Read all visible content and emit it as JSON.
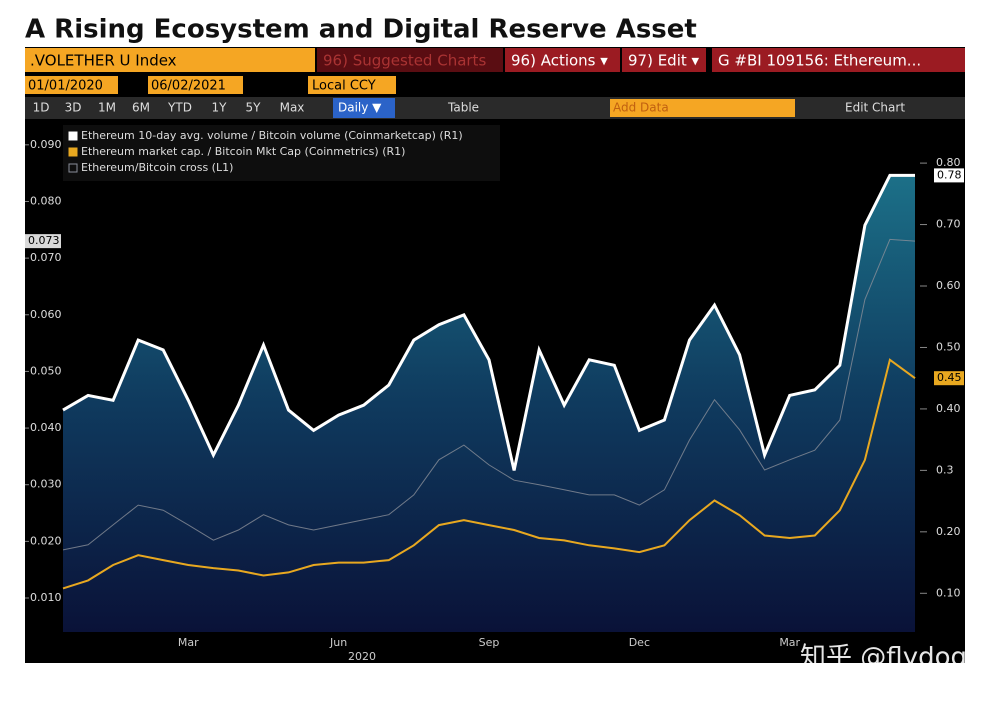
{
  "chart_data": {
    "type": "line",
    "title": "A Rising Ecosystem and Digital Reserve Asset",
    "categories": [
      null,
      null,
      null,
      null,
      null,
      "Mar",
      null,
      null,
      null,
      null,
      null,
      "Jun",
      null,
      null,
      null,
      null,
      null,
      "Sep",
      null,
      null,
      null,
      null,
      null,
      "Dec",
      null,
      null,
      null,
      null,
      null,
      "Mar",
      null,
      null,
      null,
      null,
      null
    ],
    "xlabel": "2020",
    "series": [
      {
        "name": "Ethereum 10-day avg. volume / Bitcoin volume (Coinmarketcap) (R1)",
        "color": "#ffffff",
        "axis": "y2",
        "values": [
          0.398,
          0.422,
          0.414,
          0.512,
          0.496,
          0.414,
          0.325,
          0.406,
          0.504,
          0.398,
          0.365,
          0.39,
          0.406,
          0.439,
          0.512,
          0.537,
          0.553,
          0.48,
          0.3,
          0.496,
          0.406,
          0.48,
          0.471,
          0.365,
          0.382,
          0.512,
          0.569,
          0.488,
          0.325,
          0.422,
          0.431,
          0.471,
          0.699,
          0.78,
          0.78
        ]
      },
      {
        "name": "Ethereum market cap. / Bitcoin Mkt Cap (Coinmetrics) (R1)",
        "color": "#e8a820",
        "axis": "y2",
        "values": [
          0.108,
          0.121,
          0.146,
          0.162,
          0.154,
          0.146,
          0.141,
          0.137,
          0.129,
          0.134,
          0.146,
          0.15,
          0.15,
          0.154,
          0.178,
          0.211,
          0.219,
          0.211,
          0.203,
          0.19,
          0.186,
          0.178,
          0.173,
          0.167,
          0.178,
          0.219,
          0.251,
          0.227,
          0.194,
          0.19,
          0.194,
          0.235,
          0.317,
          0.48,
          0.45
        ]
      },
      {
        "name": "Ethereum/Bitcoin cross (L1)",
        "color": "#8a8f99",
        "axis": "y",
        "values": [
          0.0185,
          0.0194,
          0.0229,
          0.0264,
          0.0255,
          0.0229,
          0.0202,
          0.022,
          0.0247,
          0.0229,
          0.022,
          0.0229,
          0.0238,
          0.0247,
          0.0282,
          0.0344,
          0.037,
          0.0335,
          0.0308,
          0.03,
          0.0291,
          0.0282,
          0.0282,
          0.0264,
          0.0291,
          0.0379,
          0.045,
          0.0397,
          0.0326,
          0.0344,
          0.0361,
          0.0414,
          0.0627,
          0.0733,
          0.073
        ]
      }
    ],
    "ylim": [
      0.004,
      0.0935
    ],
    "yticks": [
      {
        "value": 0.01,
        "label": "0.010"
      },
      {
        "value": 0.02,
        "label": "0.020"
      },
      {
        "value": 0.03,
        "label": "0.030"
      },
      {
        "value": 0.04,
        "label": "0.040"
      },
      {
        "value": 0.05,
        "label": "0.050"
      },
      {
        "value": 0.06,
        "label": "0.060"
      },
      {
        "value": 0.07,
        "label": "0.070"
      },
      {
        "value": 0.08,
        "label": "0.080"
      },
      {
        "value": 0.09,
        "label": "0.090"
      }
    ],
    "y2lim": [
      0.037,
      0.862
    ],
    "y2ticks": [
      {
        "value": 0.1,
        "label": "0.10"
      },
      {
        "value": 0.2,
        "label": "0.20"
      },
      0.3,
      {
        "value": 0.4,
        "label": "0.40"
      },
      {
        "value": 0.5,
        "label": "0.50"
      },
      {
        "value": 0.6,
        "label": "0.60"
      },
      {
        "value": 0.7,
        "label": "0.70"
      },
      {
        "value": 0.8,
        "label": "0.80"
      }
    ],
    "grid": false,
    "legend": "upper left"
  },
  "toolbar": {
    "security": ".VOLETHER U Index",
    "menu": [
      "96) Suggested Charts",
      "96) Actions ▾",
      "97) Edit ▾",
      "G #BI 109156: Ethereum..."
    ],
    "start_date": "01/01/2020",
    "end_date": "06/02/2021",
    "currency": "Local CCY",
    "periods": [
      "1D",
      "3D",
      "1M",
      "6M",
      "YTD",
      "1Y",
      "5Y",
      "Max"
    ],
    "frequency": "Daily ▼",
    "table": "Table",
    "add_data": "Add Data",
    "edit_chart": "Edit Chart"
  },
  "watermark": "知乎 @flydog"
}
